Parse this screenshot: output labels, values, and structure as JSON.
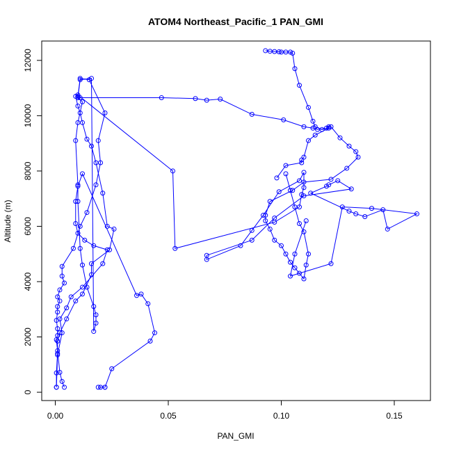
{
  "chart_data": {
    "type": "line",
    "title": "ATOM4 Northeast_Pacific_1 PAN_GMI",
    "xlabel": "PAN_GMI",
    "ylabel": "Altitude (m)",
    "xlim": [
      -0.006,
      0.166
    ],
    "ylim": [
      -300,
      12700
    ],
    "xticks": [
      0.0,
      0.05,
      0.1,
      0.15
    ],
    "xtick_labels": [
      "0.00",
      "0.05",
      "0.10",
      "0.15"
    ],
    "yticks": [
      0,
      2000,
      4000,
      6000,
      8000,
      10000,
      12000
    ],
    "ytick_labels": [
      "0",
      "2000",
      "4000",
      "6000",
      "8000",
      "10000",
      "12000"
    ],
    "grid": false,
    "color": "#0000ff",
    "series": [
      {
        "x": [
          0.004,
          0.003,
          0.002,
          0.001,
          0.0005,
          0.001,
          0.001,
          0.0005,
          0.001,
          0.001,
          0.002,
          0.001,
          0.002,
          0.004,
          0.003,
          0.003,
          0.008,
          0.011,
          0.014,
          0.018,
          0.02,
          0.019,
          0.022,
          0.015,
          0.011,
          0.01,
          0.01,
          0.012,
          0.01,
          0.009,
          0.01,
          0.01,
          0.011,
          0.012,
          0.014,
          0.017,
          0.018,
          0.018,
          0.017,
          0.016,
          0.011,
          0.01,
          0.011,
          0.047,
          0.062,
          0.067,
          0.073,
          0.087,
          0.101,
          0.11,
          0.114,
          0.116,
          0.121,
          0.115,
          0.112,
          0.11,
          0.109,
          0.109,
          0.102,
          0.098
        ],
        "y": [
          180,
          390,
          720,
          1500,
          1900,
          2050,
          2300,
          2600,
          2900,
          3100,
          3300,
          3450,
          3700,
          3950,
          4200,
          4550,
          5200,
          6000,
          6500,
          7500,
          8300,
          9100,
          10100,
          11300,
          11350,
          10700,
          10650,
          10500,
          9750,
          9100,
          7500,
          6900,
          5200,
          4600,
          3800,
          3100,
          2800,
          2500,
          2200,
          11350,
          11300,
          10650,
          10650,
          10650,
          10620,
          10560,
          10600,
          10050,
          9850,
          9600,
          9550,
          9500,
          9550,
          9300,
          9100,
          8500,
          8400,
          8300,
          8200,
          7750
        ]
      },
      {
        "x": [
          0.0005,
          0.0005,
          0.001,
          0.001,
          0.002,
          0.005,
          0.009,
          0.012,
          0.016,
          0.016,
          0.024,
          0.026,
          0.023,
          0.021,
          0.018,
          0.016,
          0.014,
          0.012,
          0.011,
          0.01,
          0.009,
          0.01,
          0.052,
          0.053,
          0.097,
          0.108,
          0.109,
          0.11,
          0.11,
          0.108,
          0.099,
          0.092,
          0.087,
          0.082,
          0.067,
          0.067,
          0.087,
          0.097,
          0.11,
          0.131,
          0.125,
          0.121,
          0.12,
          0.113,
          0.13,
          0.133,
          0.137,
          0.145,
          0.147,
          0.16,
          0.14,
          0.127,
          0.122,
          0.104,
          0.106,
          0.111
        ],
        "y": [
          180,
          700,
          1400,
          1850,
          2150,
          2650,
          3300,
          3550,
          4250,
          4650,
          5150,
          5900,
          6000,
          7200,
          8300,
          8900,
          9150,
          9750,
          10100,
          10350,
          10700,
          10750,
          8000,
          5200,
          6150,
          6700,
          7150,
          7400,
          7950,
          7650,
          7250,
          6400,
          5850,
          5300,
          4800,
          4950,
          5500,
          6300,
          7100,
          7350,
          7650,
          7500,
          7450,
          7200,
          6550,
          6450,
          6350,
          6600,
          5900,
          6450,
          6650,
          6700,
          4650,
          4200,
          5000,
          6200
        ]
      },
      {
        "x": [
          0.0005,
          0.001,
          0.003,
          0.002,
          0.005,
          0.007,
          0.012,
          0.021,
          0.023,
          0.017,
          0.013,
          0.01,
          0.009,
          0.009,
          0.01,
          0.012,
          0.036,
          0.038,
          0.041,
          0.044,
          0.042,
          0.025,
          0.022,
          0.02,
          0.019,
          0.022
        ],
        "y": [
          180,
          1350,
          2150,
          2650,
          3050,
          3450,
          3800,
          4650,
          5150,
          5300,
          5500,
          5750,
          6100,
          6900,
          7450,
          7900,
          3500,
          3550,
          3200,
          2150,
          1850,
          850,
          180,
          180,
          180,
          180
        ]
      },
      {
        "x": [
          0.093,
          0.095,
          0.097,
          0.099,
          0.1,
          0.102,
          0.104,
          0.105,
          0.106,
          0.108,
          0.112,
          0.114,
          0.115,
          0.118,
          0.12,
          0.121,
          0.122,
          0.126,
          0.13,
          0.133,
          0.134,
          0.129,
          0.122,
          0.11,
          0.105,
          0.095,
          0.093,
          0.093,
          0.095,
          0.097,
          0.1,
          0.102,
          0.104,
          0.106,
          0.108,
          0.11,
          0.111,
          0.112,
          0.11,
          0.108,
          0.106,
          0.104,
          0.102
        ],
        "y": [
          12350,
          12330,
          12320,
          12310,
          12300,
          12300,
          12300,
          12260,
          11700,
          11100,
          10300,
          9800,
          9600,
          9500,
          9550,
          9600,
          9600,
          9200,
          8900,
          8700,
          8500,
          8100,
          7700,
          7600,
          7300,
          6900,
          6400,
          6200,
          5900,
          5500,
          5300,
          5000,
          4700,
          4500,
          4300,
          4100,
          4600,
          5000,
          5800,
          6100,
          6700,
          7300,
          7900
        ]
      }
    ]
  }
}
